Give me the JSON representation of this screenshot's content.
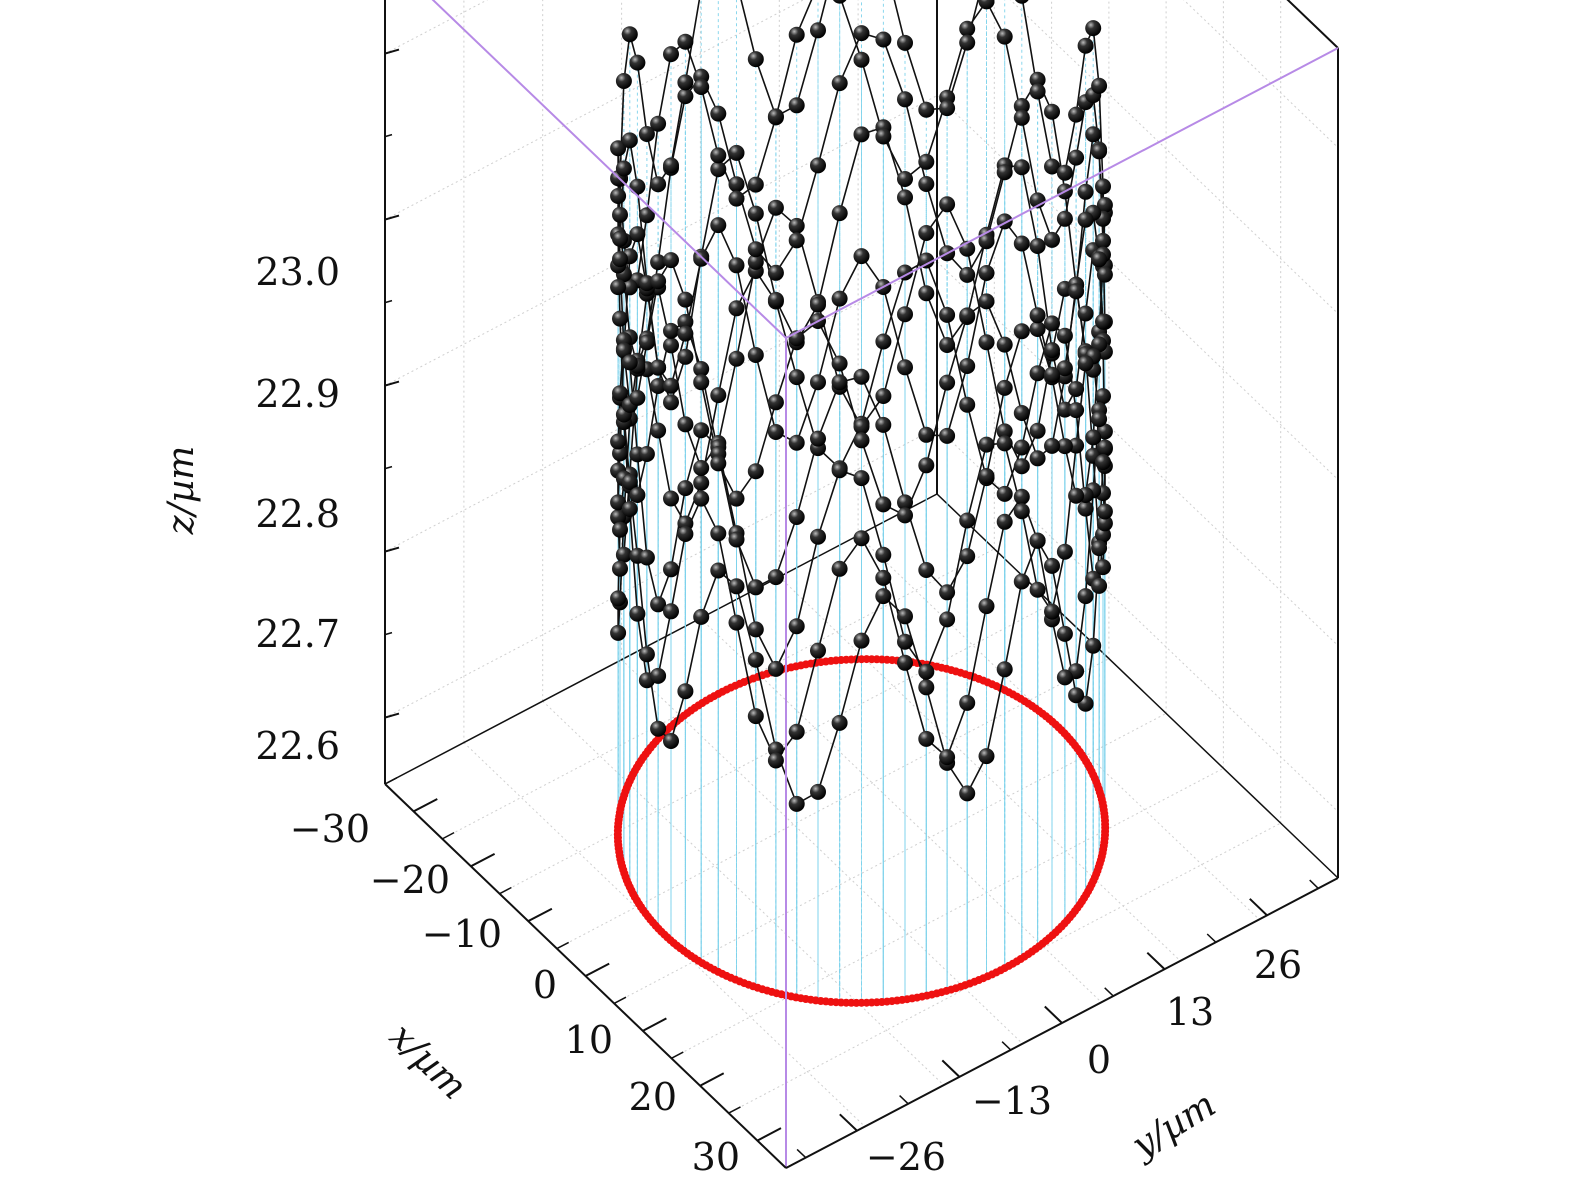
{
  "chart_data": {
    "type": "scatter3d",
    "xlabel": "x/µm",
    "ylabel": "y/µm",
    "zlabel": "z/µm",
    "x_ticks": [
      "−30",
      "−20",
      "−10",
      "0",
      "10",
      "20",
      "30"
    ],
    "y_ticks": [
      "−26",
      "−13",
      "0",
      "13",
      "26"
    ],
    "z_ticks": [
      "22.6",
      "22.7",
      "22.8",
      "22.9",
      "23.0"
    ],
    "xlim": [
      -35,
      35
    ],
    "ylim": [
      -35,
      35
    ],
    "zlim": [
      22.56,
      23.06
    ],
    "grid": true,
    "series": [
      {
        "type": "scatter",
        "marker": "sphere",
        "color": "#111111",
        "radius_um": 25,
        "points_per_loop": 70,
        "loops": [
          {
            "base_z": 22.74,
            "amplitude": 0.065,
            "harmonic": 9,
            "phase": 0.0
          },
          {
            "base_z": 22.77,
            "amplitude": 0.07,
            "harmonic": 9,
            "phase": 1.0
          },
          {
            "base_z": 22.82,
            "amplitude": 0.065,
            "harmonic": 10,
            "phase": 2.1
          },
          {
            "base_z": 22.87,
            "amplitude": 0.07,
            "harmonic": 8,
            "phase": 0.6
          },
          {
            "base_z": 22.91,
            "amplitude": 0.06,
            "harmonic": 9,
            "phase": 2.7
          },
          {
            "base_z": 22.95,
            "amplitude": 0.06,
            "harmonic": 10,
            "phase": 1.5
          }
        ]
      },
      {
        "type": "scatter",
        "marker": "dot",
        "color": "#ee1111",
        "radius_um": 25,
        "z": 22.56,
        "count": 300
      },
      {
        "type": "dropline",
        "color": "#7fd3ec"
      }
    ]
  }
}
